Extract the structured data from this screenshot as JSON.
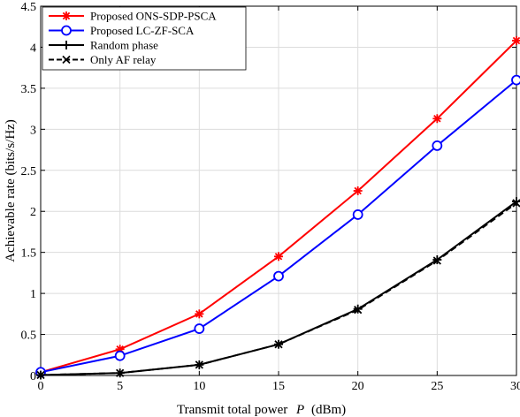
{
  "chart_data": {
    "type": "line",
    "title": "",
    "xlabel": "Transmit total power",
    "xlabel_symbol": "P",
    "xlabel_unit": "(dBm)",
    "ylabel": "Achievable rate (bits/s/Hz)",
    "xlim": [
      0,
      30
    ],
    "ylim": [
      0,
      4.5
    ],
    "x_ticks": [
      0,
      5,
      10,
      15,
      20,
      25,
      30
    ],
    "y_ticks": [
      0,
      0.5,
      1,
      1.5,
      2,
      2.5,
      3,
      3.5,
      4,
      4.5
    ],
    "grid": true,
    "legend_position": "top-left",
    "x": [
      0,
      5,
      10,
      15,
      20,
      25,
      30
    ],
    "series": [
      {
        "name": "Proposed ONS-SDP-PSCA",
        "values": [
          0.04,
          0.32,
          0.75,
          1.45,
          2.25,
          3.13,
          4.08
        ],
        "color": "#ff0000",
        "marker": "asterisk",
        "dash": "solid"
      },
      {
        "name": "Proposed LC-ZF-SCA",
        "values": [
          0.04,
          0.24,
          0.57,
          1.21,
          1.96,
          2.8,
          3.6
        ],
        "color": "#0000ff",
        "marker": "circle",
        "dash": "solid"
      },
      {
        "name": "Random phase",
        "values": [
          0.005,
          0.03,
          0.13,
          0.38,
          0.81,
          1.41,
          2.12
        ],
        "color": "#000000",
        "marker": "plus",
        "dash": "solid"
      },
      {
        "name": "Only AF relay",
        "values": [
          0.005,
          0.03,
          0.13,
          0.38,
          0.8,
          1.4,
          2.1
        ],
        "color": "#000000",
        "marker": "x",
        "dash": "dashed"
      }
    ]
  }
}
